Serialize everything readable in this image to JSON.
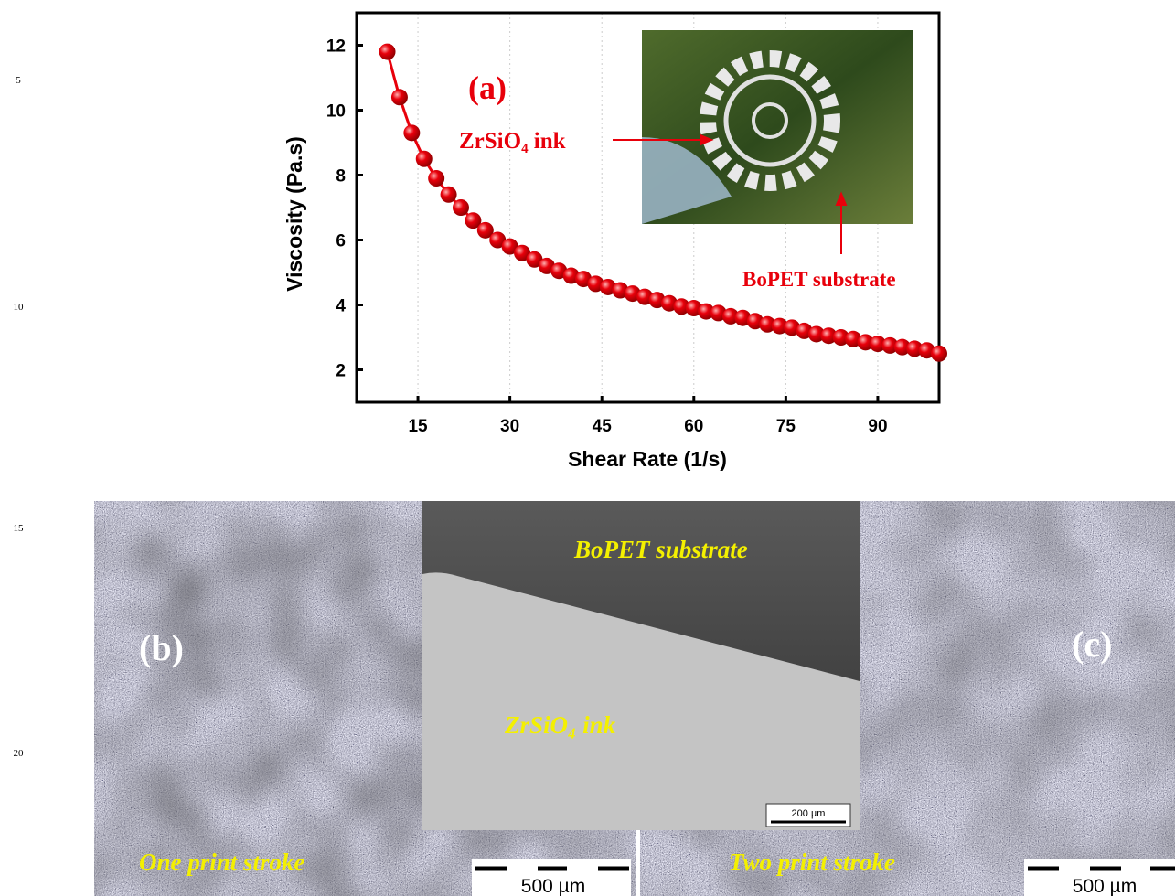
{
  "line_numbers": [
    5,
    10,
    15,
    20
  ],
  "chart_data": {
    "type": "line",
    "x_label": "Shear Rate (1/s)",
    "y_label": "Viscosity (Pa.s)",
    "x": [
      10,
      12,
      14,
      16,
      18,
      20,
      22,
      24,
      26,
      28,
      30,
      32,
      34,
      36,
      38,
      40,
      42,
      44,
      46,
      48,
      50,
      52,
      54,
      56,
      58,
      60,
      62,
      64,
      66,
      68,
      70,
      72,
      74,
      76,
      78,
      80,
      82,
      84,
      86,
      88,
      90,
      92,
      94,
      96,
      98,
      100
    ],
    "series": [
      {
        "color": "#e8000b",
        "values": [
          11.8,
          10.4,
          9.3,
          8.5,
          7.9,
          7.4,
          7.0,
          6.6,
          6.3,
          6.0,
          5.8,
          5.6,
          5.4,
          5.2,
          5.05,
          4.9,
          4.8,
          4.65,
          4.55,
          4.45,
          4.35,
          4.25,
          4.15,
          4.05,
          3.95,
          3.9,
          3.8,
          3.75,
          3.65,
          3.6,
          3.5,
          3.4,
          3.35,
          3.3,
          3.2,
          3.1,
          3.05,
          3.0,
          2.95,
          2.85,
          2.8,
          2.75,
          2.7,
          2.65,
          2.6,
          2.5
        ]
      }
    ],
    "xlim": [
      5,
      100
    ],
    "ylim": [
      1,
      13
    ],
    "xticks": [
      15,
      30,
      45,
      60,
      75,
      90
    ],
    "yticks": [
      2,
      4,
      6,
      8,
      10,
      12
    ],
    "grid": true,
    "annotations": {
      "panel": "(a)",
      "ink": "ZrSiO₄ ink",
      "substrate": "BoPET substrate"
    }
  },
  "micrographs": {
    "left": {
      "label": "(b)",
      "caption": "One print stroke",
      "scale": "500 µm"
    },
    "right": {
      "label": "(c)",
      "caption": "Two print stroke",
      "scale": "500 µm"
    },
    "inset": {
      "top": "BoPET substrate",
      "bottom": "ZrSiO₄ ink",
      "scale": "200 µm"
    }
  }
}
